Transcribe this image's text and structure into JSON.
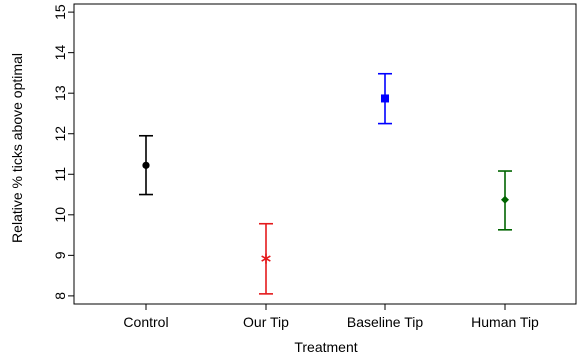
{
  "chart_data": {
    "type": "errorbar",
    "xlabel": "Treatment",
    "ylabel": "Relative % ticks above optimal",
    "ylim": [
      7.8,
      15.2
    ],
    "yticks": [
      8,
      9,
      10,
      11,
      12,
      13,
      14,
      15
    ],
    "categories": [
      "Control",
      "Our Tip",
      "Baseline Tip",
      "Human Tip"
    ],
    "series": [
      {
        "category": "Control",
        "mean": 11.22,
        "lower": 10.5,
        "upper": 11.95,
        "color": "#000000",
        "marker": "circle"
      },
      {
        "category": "Our Tip",
        "mean": 8.92,
        "lower": 8.05,
        "upper": 9.78,
        "color": "#e41a1c",
        "marker": "asterisk"
      },
      {
        "category": "Baseline Tip",
        "mean": 12.87,
        "lower": 12.25,
        "upper": 13.48,
        "color": "#0000ff",
        "marker": "square"
      },
      {
        "category": "Human Tip",
        "mean": 10.37,
        "lower": 9.63,
        "upper": 11.08,
        "color": "#006400",
        "marker": "diamond"
      }
    ],
    "grid": false,
    "legend": "none"
  }
}
